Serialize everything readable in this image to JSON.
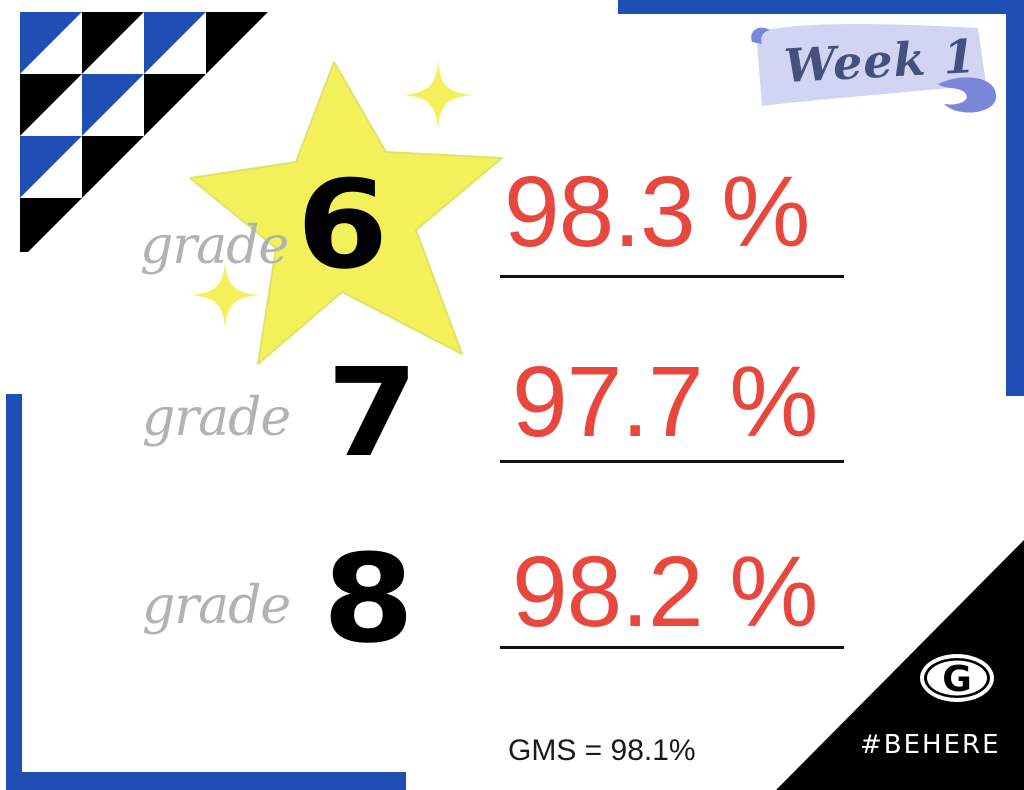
{
  "banner": {
    "label": "Week 1"
  },
  "grades": [
    {
      "label": "grade",
      "number": "6",
      "percent": "98.3 %"
    },
    {
      "label": "grade",
      "number": "7",
      "percent": "97.7 %"
    },
    {
      "label": "grade",
      "number": "8",
      "percent": "98.2 %"
    }
  ],
  "summary": {
    "text": "GMS = 98.1%"
  },
  "footer": {
    "hashtag": "#BEHERE",
    "logo_letter": "G"
  },
  "colors": {
    "frame": "#1f4fb4",
    "percent": "#e8473e",
    "star": "#f3f15a",
    "grade_label": "#b2b2b2"
  },
  "icons": [
    "star-icon",
    "sparkle-icon",
    "g-logo-icon",
    "triangle-pattern"
  ]
}
